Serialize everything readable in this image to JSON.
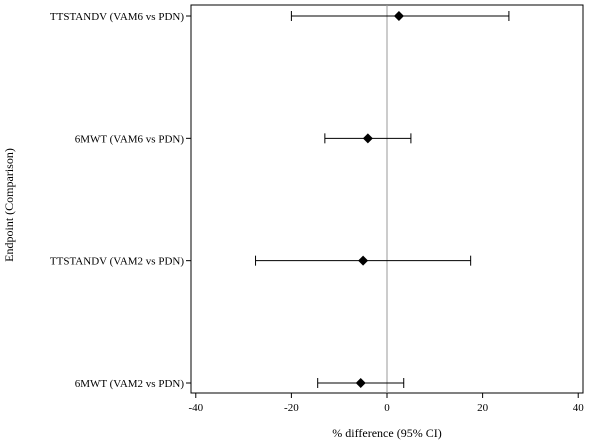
{
  "chart_data": {
    "type": "forest",
    "xlabel": "% difference (95% CI)",
    "ylabel": "Endpoint (Comparison)",
    "xlim": [
      -41,
      41
    ],
    "xticks": [
      -40,
      -20,
      0,
      20,
      40
    ],
    "xtick_labels": [
      "-40",
      "-20",
      "0",
      "20",
      "40"
    ],
    "reference_line": 0,
    "grid": false,
    "legend": "none",
    "colors": {
      "marker": "#000000",
      "reference_line": "#999999",
      "frame": "#000000"
    },
    "rows": [
      {
        "label": "TTSTANDV (VAM6 vs PDN)",
        "estimate": 2.5,
        "lower": -20.0,
        "upper": 25.5
      },
      {
        "label": "6MWT (VAM6 vs PDN)",
        "estimate": -4.0,
        "lower": -13.0,
        "upper": 5.0
      },
      {
        "label": "TTSTANDV (VAM2 vs PDN)",
        "estimate": -5.0,
        "lower": -27.5,
        "upper": 17.5
      },
      {
        "label": "6MWT (VAM2 vs PDN)",
        "estimate": -5.5,
        "lower": -14.5,
        "upper": 3.5
      }
    ]
  }
}
